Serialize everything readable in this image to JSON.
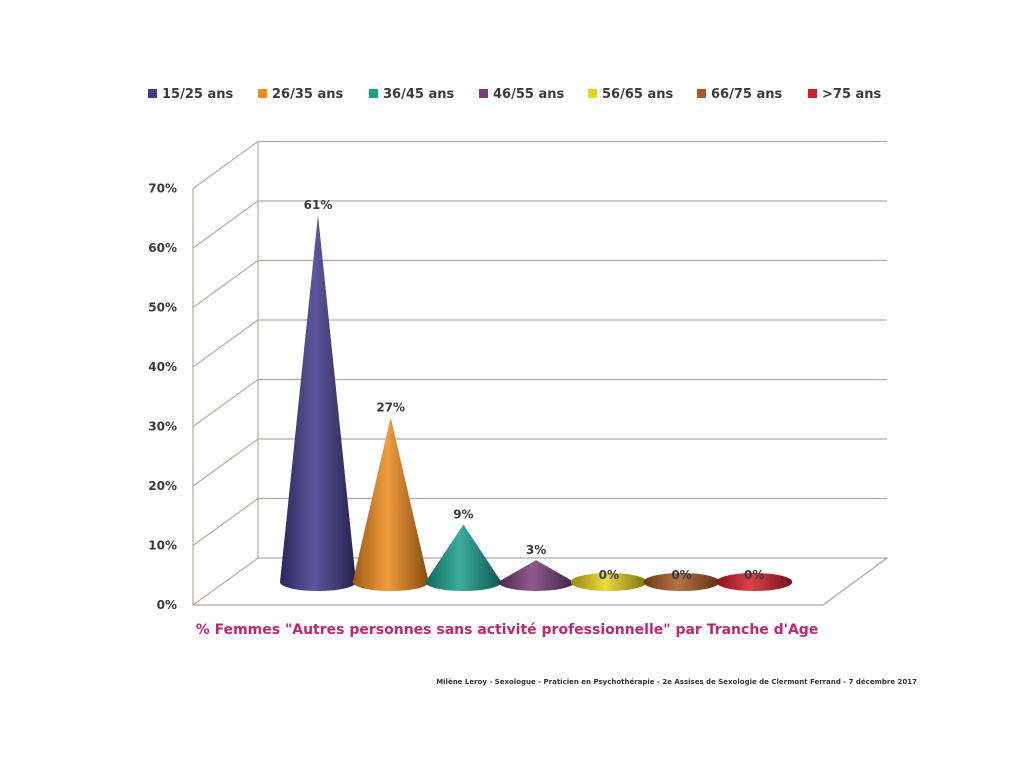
{
  "chart_data": {
    "type": "bar",
    "style": "3d-cone",
    "categories": [
      "15/25 ans",
      "26/35 ans",
      "36/45 ans",
      "46/55 ans",
      "56/65 ans",
      "66/75 ans",
      ">75 ans"
    ],
    "values": [
      61,
      27,
      9,
      3,
      0,
      0,
      0
    ],
    "data_labels": [
      "61%",
      "27%",
      "9%",
      "3%",
      "0%",
      "0%",
      "0%"
    ],
    "colors": [
      "#3f3a8c",
      "#f08a1c",
      "#1a9e8c",
      "#7a3d78",
      "#e8d21c",
      "#a85a24",
      "#d21f2a"
    ],
    "ylim": [
      0,
      70
    ],
    "y_ticks": [
      "0%",
      "10%",
      "20%",
      "30%",
      "40%",
      "50%",
      "60%",
      "70%"
    ],
    "y_tick_values": [
      0,
      10,
      20,
      30,
      40,
      50,
      60,
      70
    ],
    "legend_position": "top",
    "grid": true,
    "xlabel": "% Femmes \"Autres personnes sans activité professionnelle\" par Tranche d'Age",
    "xlabel_color": "#c0266e",
    "ylabel": "",
    "title": ""
  },
  "footer": {
    "credit": "Milène Leroy - Sexologue - Praticien en Psychothérapie - 2e Assises de Sexologie de Clermont Ferrand - 7 décembre 2017"
  }
}
